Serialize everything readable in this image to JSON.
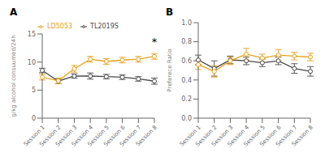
{
  "chart_data": [
    {
      "type": "line",
      "title": "A",
      "ylabel": "g/kg alcohol consuumed/24h",
      "categories": [
        "Session 1",
        "Session 2",
        "Session 3",
        "Session 4",
        "Session 5",
        "Session 6",
        "Session 7",
        "Session 8"
      ],
      "series": [
        {
          "name": "TL2019S",
          "color": "#4a4a4a",
          "marker": "circle",
          "values": [
            8.5,
            6.6,
            7.5,
            7.5,
            7.4,
            7.3,
            7.0,
            6.6
          ],
          "errors": [
            0.4,
            0.45,
            0.4,
            0.55,
            0.4,
            0.4,
            0.4,
            0.55
          ]
        },
        {
          "name": "LD5053",
          "color": "#E8A020",
          "marker": "circle",
          "values": [
            7.3,
            6.65,
            8.8,
            10.5,
            10.1,
            10.35,
            10.5,
            11.0
          ],
          "errors": [
            0.5,
            0.5,
            0.6,
            0.5,
            0.5,
            0.5,
            0.5,
            0.5
          ]
        }
      ],
      "ylim": [
        0,
        15
      ],
      "yticks": [
        0,
        5,
        10,
        15
      ],
      "legend": "top",
      "annotations": [
        {
          "text": "*",
          "x": "Session 8",
          "y": 12.2
        }
      ]
    },
    {
      "type": "line",
      "title": "B",
      "ylabel": "Preferece Ratio",
      "categories": [
        "Session 1",
        "Session 2",
        "Session 3",
        "Session 4",
        "Session 5",
        "Session 6",
        "Session 7",
        "Session 8"
      ],
      "series": [
        {
          "name": "TL2019S",
          "color": "#4a4a4a",
          "marker": "circle",
          "values": [
            0.61,
            0.52,
            0.61,
            0.6,
            0.58,
            0.6,
            0.52,
            0.49
          ],
          "errors": [
            0.05,
            0.08,
            0.04,
            0.04,
            0.04,
            0.04,
            0.05,
            0.05
          ]
        },
        {
          "name": "LD5053",
          "color": "#E8A020",
          "marker": "circle",
          "values": [
            0.56,
            0.49,
            0.6,
            0.67,
            0.63,
            0.66,
            0.65,
            0.64
          ],
          "errors": [
            0.05,
            0.06,
            0.04,
            0.06,
            0.04,
            0.06,
            0.04,
            0.04
          ]
        }
      ],
      "ylim": [
        0.0,
        1.0
      ],
      "yticks": [
        {
          "value": 0,
          "label": "0.0"
        },
        0.2,
        0.4,
        0.6,
        0.8,
        {
          "value": 1,
          "label": "1.0"
        }
      ]
    }
  ]
}
